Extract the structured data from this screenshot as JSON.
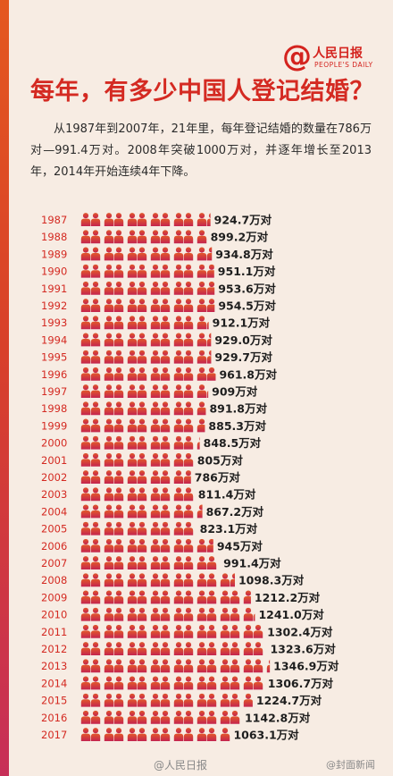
{
  "header": {
    "logo_symbol": "@",
    "logo_text": "人民日报",
    "logo_en": "PEOPLE'S DAILY",
    "title": "每年，有多少中国人登记结婚？",
    "intro": "从1987年到2007年，21年里，每年登记结婚的数量在786万对—991.4万对。2008年突破1000万对，并逐年增长至2013年，2014年开始连续4年下降。"
  },
  "footer": {
    "left": "@人民日报",
    "right": "@封面新闻"
  },
  "colors": {
    "title": "#d42a22",
    "year_label": "#d42a22",
    "value_text": "#1e1e1e",
    "people_top": "#e2582a",
    "people_bottom": "#c4244f"
  },
  "chart_data": {
    "type": "bar",
    "icon": "couple-pictogram",
    "unit": "万对",
    "categories": [
      "1987",
      "1988",
      "1989",
      "1990",
      "1991",
      "1992",
      "1993",
      "1994",
      "1995",
      "1996",
      "1997",
      "1998",
      "1999",
      "2000",
      "2001",
      "2002",
      "2003",
      "2004",
      "2005",
      "2006",
      "2007",
      "2008",
      "2009",
      "2010",
      "2011",
      "2012",
      "2013",
      "2014",
      "2015",
      "2016",
      "2017"
    ],
    "values": [
      924.7,
      899.2,
      934.8,
      951.1,
      953.6,
      954.5,
      912.1,
      929.0,
      929.7,
      961.8,
      909,
      891.8,
      885.3,
      848.5,
      805,
      786,
      811.4,
      867.2,
      823.1,
      945,
      991.4,
      1098.3,
      1212.2,
      1241.0,
      1302.4,
      1323.6,
      1346.9,
      1306.7,
      1224.7,
      1142.8,
      1063.1
    ],
    "value_labels": [
      "924.7万对",
      "899.2万对",
      "934.8万对",
      "951.1万对",
      "953.6万对",
      "954.5万对",
      "912.1万对",
      "929.0万对",
      "929.7万对",
      "961.8万对",
      "909万对",
      "891.8万对",
      "885.3万对",
      "848.5万对",
      "805万对",
      "786万对",
      "811.4万对",
      "867.2万对",
      "823.1万对",
      "945万对",
      "991.4万对",
      "1098.3万对",
      "1212.2万对",
      "1241.0万对",
      "1302.4万对",
      "1323.6万对",
      "1346.9万对",
      "1306.7万对",
      "1224.7万对",
      "1142.8万对",
      "1063.1万对"
    ]
  }
}
